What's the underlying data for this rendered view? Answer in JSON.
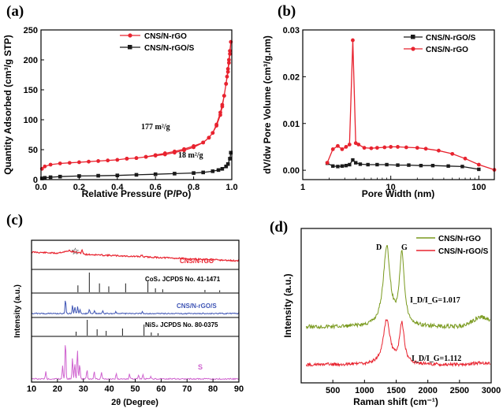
{
  "colors": {
    "red": "#e8232f",
    "black": "#1a1a1a",
    "olive": "#7a9a1f",
    "blue": "#3f55b5",
    "magenta": "#cf63cf"
  },
  "chart_data": [
    {
      "panel": "(a)",
      "type": "line",
      "xlabel": "Relative Pressure (P/Po)",
      "ylabel": "Quantity Adsorbed (cm³/g STP)",
      "xlim": [
        0,
        1.0
      ],
      "ylim": [
        0,
        250
      ],
      "xticks": [
        "0.0",
        "0.2",
        "0.4",
        "0.6",
        "0.8",
        "1.0"
      ],
      "yticks": [
        "0",
        "50",
        "100",
        "150",
        "200",
        "250"
      ],
      "legend": [
        "CNS/N-rGO",
        "CNS/N-rGO/S"
      ],
      "annotations": [
        "177 m²/g",
        "18 m²/g"
      ],
      "series": [
        {
          "name": "CNS/N-rGO",
          "color": "#e8232f",
          "marker": "circle",
          "x": [
            0.005,
            0.02,
            0.05,
            0.1,
            0.15,
            0.2,
            0.25,
            0.3,
            0.35,
            0.4,
            0.45,
            0.5,
            0.55,
            0.6,
            0.65,
            0.7,
            0.75,
            0.8,
            0.85,
            0.88,
            0.9,
            0.92,
            0.94,
            0.95,
            0.96,
            0.97,
            0.975,
            0.98,
            0.985,
            0.99,
            0.995,
            0.99,
            0.985,
            0.98,
            0.97,
            0.96,
            0.95,
            0.94,
            0.92,
            0.9,
            0.88,
            0.85,
            0.8,
            0.75,
            0.7,
            0.65,
            0.6,
            0.55,
            0.5,
            0.45
          ],
          "y": [
            18,
            22,
            25,
            27,
            28,
            29,
            30,
            31,
            32,
            33,
            35,
            36,
            38,
            40,
            42,
            45,
            49,
            54,
            62,
            70,
            78,
            92,
            112,
            125,
            140,
            160,
            172,
            185,
            200,
            215,
            230,
            210,
            195,
            180,
            160,
            140,
            122,
            108,
            90,
            78,
            70,
            62,
            56,
            51,
            47,
            44,
            41,
            38,
            36,
            35
          ]
        },
        {
          "name": "CNS/N-rGO/S",
          "color": "#1a1a1a",
          "marker": "square",
          "x": [
            0.005,
            0.02,
            0.05,
            0.1,
            0.2,
            0.3,
            0.4,
            0.5,
            0.6,
            0.7,
            0.8,
            0.85,
            0.9,
            0.93,
            0.95,
            0.97,
            0.98,
            0.99,
            0.995
          ],
          "y": [
            2,
            3,
            4,
            5,
            6,
            6.5,
            7,
            8,
            9,
            10,
            11,
            12,
            14,
            16,
            18,
            22,
            26,
            35,
            45
          ]
        }
      ]
    },
    {
      "panel": "(b)",
      "type": "line",
      "xscale": "log",
      "xlabel": "Pore Width (nm)",
      "ylabel": "dV/dw Pore Volume (cm³/g.nm)",
      "xlim": [
        1,
        150
      ],
      "ylim": [
        -0.002,
        0.03
      ],
      "xticks": [
        "1",
        "10",
        "100"
      ],
      "yticks": [
        "0.00",
        "0.01",
        "0.02",
        "0.03"
      ],
      "legend": [
        "CNS/N-rGO/S",
        "CNS/N-rGO"
      ],
      "series": [
        {
          "name": "CNS/N-rGO/S",
          "color": "#1a1a1a",
          "marker": "square",
          "x": [
            1.9,
            2.2,
            2.5,
            2.8,
            3.1,
            3.4,
            3.7,
            4.0,
            4.5,
            5.5,
            7,
            9,
            12,
            16,
            22,
            30,
            45,
            65,
            100
          ],
          "y": [
            0.0015,
            0.0009,
            0.0008,
            0.0009,
            0.001,
            0.0012,
            0.0022,
            0.0016,
            0.0013,
            0.0012,
            0.0012,
            0.0012,
            0.0011,
            0.0011,
            0.001,
            0.001,
            0.0009,
            0.0008,
            0.0002
          ]
        },
        {
          "name": "CNS/N-rGO",
          "color": "#e8232f",
          "marker": "circle",
          "x": [
            1.9,
            2.2,
            2.5,
            2.8,
            3.1,
            3.4,
            3.7,
            4.0,
            4.3,
            5,
            6,
            7,
            8.5,
            10,
            12,
            15,
            20,
            25,
            35,
            50,
            70,
            100,
            150
          ],
          "y": [
            0.0016,
            0.0045,
            0.0052,
            0.0045,
            0.005,
            0.0055,
            0.0278,
            0.0058,
            0.0055,
            0.0048,
            0.0047,
            0.0048,
            0.0049,
            0.005,
            0.005,
            0.0049,
            0.0048,
            0.0046,
            0.0042,
            0.0035,
            0.0025,
            0.0012,
            0.0001
          ]
        }
      ]
    },
    {
      "panel": "(c)",
      "type": "line",
      "xlabel": "2θ (Degree)",
      "ylabel": "Intensity (a.u.)",
      "xlim": [
        10,
        90
      ],
      "xticks": [
        "10",
        "20",
        "30",
        "40",
        "50",
        "60",
        "70",
        "80",
        "90"
      ],
      "labels": {
        "red": "CNS/N-rGO",
        "ref1": "CoS₂ JCPDS No. 41-1471",
        "blue": "CNS/N-rGO/S",
        "ref2": "NiS₂ JCPDS No. 80-0375",
        "sulfur": "S",
        "star": "☆"
      },
      "ref1_peaks": [
        {
          "x": 27.9,
          "h": 0.35
        },
        {
          "x": 32.3,
          "h": 1.0
        },
        {
          "x": 36.2,
          "h": 0.45
        },
        {
          "x": 39.8,
          "h": 0.3
        },
        {
          "x": 46.3,
          "h": 0.45
        },
        {
          "x": 54.9,
          "h": 0.55
        },
        {
          "x": 57.8,
          "h": 0.2
        },
        {
          "x": 60.6,
          "h": 0.15
        },
        {
          "x": 76.9,
          "h": 0.12
        },
        {
          "x": 82.6,
          "h": 0.1
        }
      ],
      "ref2_peaks": [
        {
          "x": 27.2,
          "h": 0.25
        },
        {
          "x": 31.5,
          "h": 1.0
        },
        {
          "x": 35.3,
          "h": 0.4
        },
        {
          "x": 38.8,
          "h": 0.3
        },
        {
          "x": 45.1,
          "h": 0.45
        },
        {
          "x": 53.4,
          "h": 0.7
        },
        {
          "x": 56.2,
          "h": 0.2
        },
        {
          "x": 58.8,
          "h": 0.15
        }
      ],
      "series": [
        {
          "name": "CNS/N-rGO",
          "color": "#e8232f",
          "peaks": [
            {
              "x": 24.5,
              "h": 0.06
            },
            {
              "x": 29.5,
              "h": 0.2
            },
            {
              "x": 52.5,
              "h": 0.1
            }
          ]
        },
        {
          "name": "CNS/N-rGO/S",
          "color": "#3f55b5",
          "peaks": [
            {
              "x": 23.1,
              "h": 0.65
            },
            {
              "x": 25.8,
              "h": 0.4
            },
            {
              "x": 26.7,
              "h": 0.3
            },
            {
              "x": 27.8,
              "h": 0.35
            },
            {
              "x": 28.7,
              "h": 0.2
            },
            {
              "x": 32.3,
              "h": 0.2
            },
            {
              "x": 34.3,
              "h": 0.15
            },
            {
              "x": 37.5,
              "h": 0.1
            },
            {
              "x": 42.5,
              "h": 0.1
            },
            {
              "x": 52.8,
              "h": 0.1
            }
          ]
        },
        {
          "name": "S",
          "color": "#cf63cf",
          "peaks": [
            {
              "x": 15.5,
              "h": 0.18
            },
            {
              "x": 22.0,
              "h": 0.35
            },
            {
              "x": 23.1,
              "h": 1.0
            },
            {
              "x": 25.8,
              "h": 0.55
            },
            {
              "x": 26.7,
              "h": 0.4
            },
            {
              "x": 27.7,
              "h": 0.75
            },
            {
              "x": 28.6,
              "h": 0.4
            },
            {
              "x": 31.4,
              "h": 0.25
            },
            {
              "x": 34.2,
              "h": 0.2
            },
            {
              "x": 37.0,
              "h": 0.18
            },
            {
              "x": 42.7,
              "h": 0.15
            },
            {
              "x": 47.8,
              "h": 0.12
            },
            {
              "x": 51.3,
              "h": 0.1
            },
            {
              "x": 53.0,
              "h": 0.1
            },
            {
              "x": 56.0,
              "h": 0.08
            }
          ]
        }
      ]
    },
    {
      "panel": "(d)",
      "type": "line",
      "xlabel": "Raman shift (cm⁻¹)",
      "ylabel": "Intensity (a.u.)",
      "xlim": [
        0,
        3000
      ],
      "xticks": [
        "500",
        "1000",
        "1500",
        "2000",
        "2500",
        "3000"
      ],
      "legend": [
        "CNS/N-rGO",
        "CNS/N-rGO/S"
      ],
      "annotations": {
        "D": "D",
        "G": "G",
        "ratio1": "I_D/I_G=1.017",
        "ratio2": "I_D/I_G=1.112"
      },
      "series": [
        {
          "name": "CNS/N-rGO",
          "color": "#7a9a1f",
          "ratio": 1.017,
          "D_band": 1350,
          "G_band": 1590
        },
        {
          "name": "CNS/N-rGO/S",
          "color": "#e8232f",
          "ratio": 1.112,
          "D_band": 1350,
          "G_band": 1590
        }
      ]
    }
  ]
}
